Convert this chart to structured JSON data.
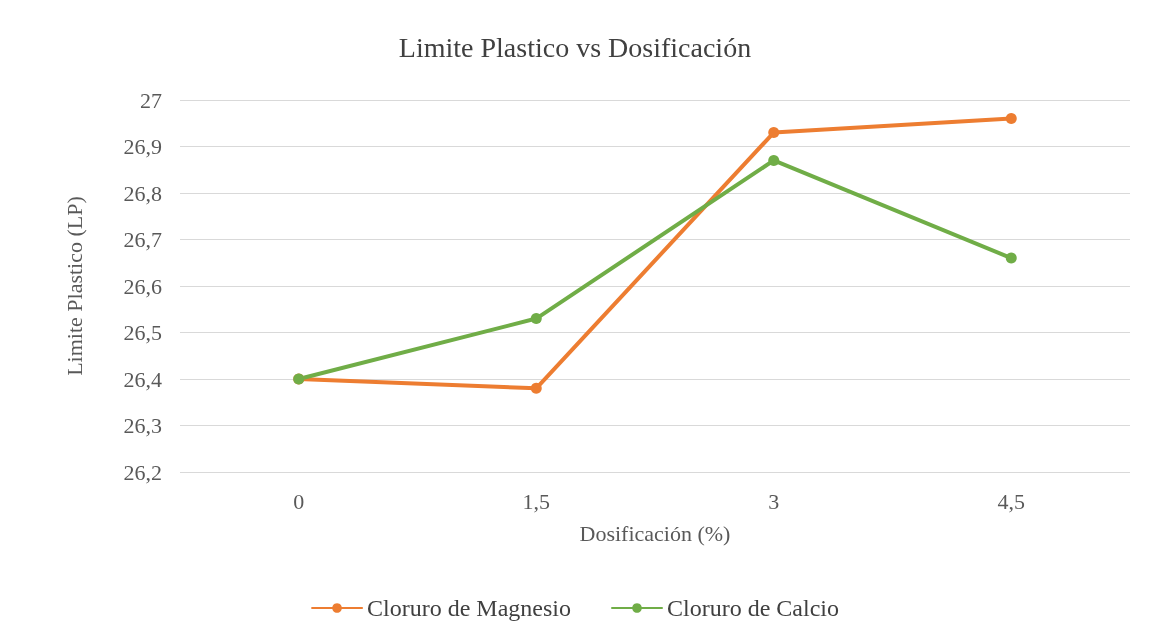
{
  "chart_data": {
    "type": "line",
    "title": "Limite Plastico vs Dosificación",
    "xlabel": "Dosificación (%)",
    "ylabel": "Limite Plastico (LP)",
    "categories": [
      "0",
      "1,5",
      "3",
      "4,5"
    ],
    "series": [
      {
        "name": "Cloruro de Magnesio",
        "color": "#ed7d31",
        "values": [
          26.4,
          26.38,
          26.93,
          26.96
        ]
      },
      {
        "name": "Cloruro de Calcio",
        "color": "#70ad47",
        "values": [
          26.4,
          26.53,
          26.87,
          26.66
        ]
      }
    ],
    "ylim": [
      26.2,
      27
    ],
    "yticks": [
      {
        "value": 26.2,
        "label": "26,2"
      },
      {
        "value": 26.3,
        "label": "26,3"
      },
      {
        "value": 26.4,
        "label": "26,4"
      },
      {
        "value": 26.5,
        "label": "26,5"
      },
      {
        "value": 26.6,
        "label": "26,6"
      },
      {
        "value": 26.7,
        "label": "26,7"
      },
      {
        "value": 26.8,
        "label": "26,8"
      },
      {
        "value": 26.9,
        "label": "26,9"
      },
      27
    ],
    "grid": "y",
    "legend": "bottom",
    "marker": "circle",
    "line_style": "solid"
  }
}
